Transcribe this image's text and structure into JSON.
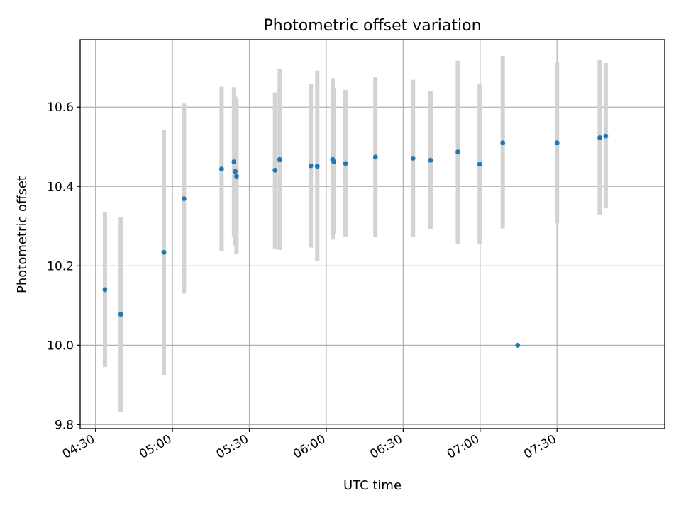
{
  "chart_data": {
    "type": "scatter",
    "title": "Photometric offset variation",
    "xlabel": "UTC time",
    "ylabel": "Photometric offset",
    "xlim": [
      "04:24",
      "08:12"
    ],
    "ylim": [
      9.79,
      10.77
    ],
    "grid": true,
    "x_ticks": [
      "04:30",
      "05:00",
      "05:30",
      "06:00",
      "06:30",
      "07:00",
      "07:30"
    ],
    "y_ticks": [
      "9.8",
      "10.0",
      "10.2",
      "10.4",
      "10.6"
    ],
    "colors": {
      "point": "#1f77b4",
      "errorbar": "#d3d3d3",
      "grid": "#b0b0b0"
    },
    "points": [
      {
        "time": "04:33:40",
        "y": 10.14,
        "ylow": 9.945,
        "yhigh": 10.335
      },
      {
        "time": "04:39:50",
        "y": 10.078,
        "ylow": 9.832,
        "yhigh": 10.322
      },
      {
        "time": "04:56:40",
        "y": 10.234,
        "ylow": 9.925,
        "yhigh": 10.543
      },
      {
        "time": "05:04:30",
        "y": 10.369,
        "ylow": 10.13,
        "yhigh": 10.609
      },
      {
        "time": "05:19:10",
        "y": 10.444,
        "ylow": 10.237,
        "yhigh": 10.651
      },
      {
        "time": "05:24:00",
        "y": 10.462,
        "ylow": 10.274,
        "yhigh": 10.65
      },
      {
        "time": "05:24:30",
        "y": 10.438,
        "ylow": 10.25,
        "yhigh": 10.626
      },
      {
        "time": "05:25:00",
        "y": 10.426,
        "ylow": 10.231,
        "yhigh": 10.621
      },
      {
        "time": "05:40:00",
        "y": 10.441,
        "ylow": 10.242,
        "yhigh": 10.637
      },
      {
        "time": "05:41:50",
        "y": 10.468,
        "ylow": 10.24,
        "yhigh": 10.697
      },
      {
        "time": "05:54:00",
        "y": 10.452,
        "ylow": 10.246,
        "yhigh": 10.659
      },
      {
        "time": "05:56:30",
        "y": 10.451,
        "ylow": 10.213,
        "yhigh": 10.692
      },
      {
        "time": "06:02:30",
        "y": 10.468,
        "ylow": 10.266,
        "yhigh": 10.673
      },
      {
        "time": "06:03:00",
        "y": 10.462,
        "ylow": 10.279,
        "yhigh": 10.649
      },
      {
        "time": "06:07:30",
        "y": 10.458,
        "ylow": 10.274,
        "yhigh": 10.643
      },
      {
        "time": "06:19:10",
        "y": 10.474,
        "ylow": 10.272,
        "yhigh": 10.676
      },
      {
        "time": "06:33:50",
        "y": 10.471,
        "ylow": 10.273,
        "yhigh": 10.669
      },
      {
        "time": "06:40:40",
        "y": 10.466,
        "ylow": 10.293,
        "yhigh": 10.64
      },
      {
        "time": "06:51:20",
        "y": 10.487,
        "ylow": 10.256,
        "yhigh": 10.717
      },
      {
        "time": "06:59:50",
        "y": 10.456,
        "ylow": 10.256,
        "yhigh": 10.657
      },
      {
        "time": "07:08:50",
        "y": 10.51,
        "ylow": 10.294,
        "yhigh": 10.729
      },
      {
        "time": "07:14:40",
        "y": 10.0,
        "ylow": null,
        "yhigh": null
      },
      {
        "time": "07:30:00",
        "y": 10.51,
        "ylow": 10.307,
        "yhigh": 10.713
      },
      {
        "time": "07:46:40",
        "y": 10.523,
        "ylow": 10.328,
        "yhigh": 10.72
      },
      {
        "time": "07:49:00",
        "y": 10.527,
        "ylow": 10.345,
        "yhigh": 10.711
      }
    ]
  }
}
